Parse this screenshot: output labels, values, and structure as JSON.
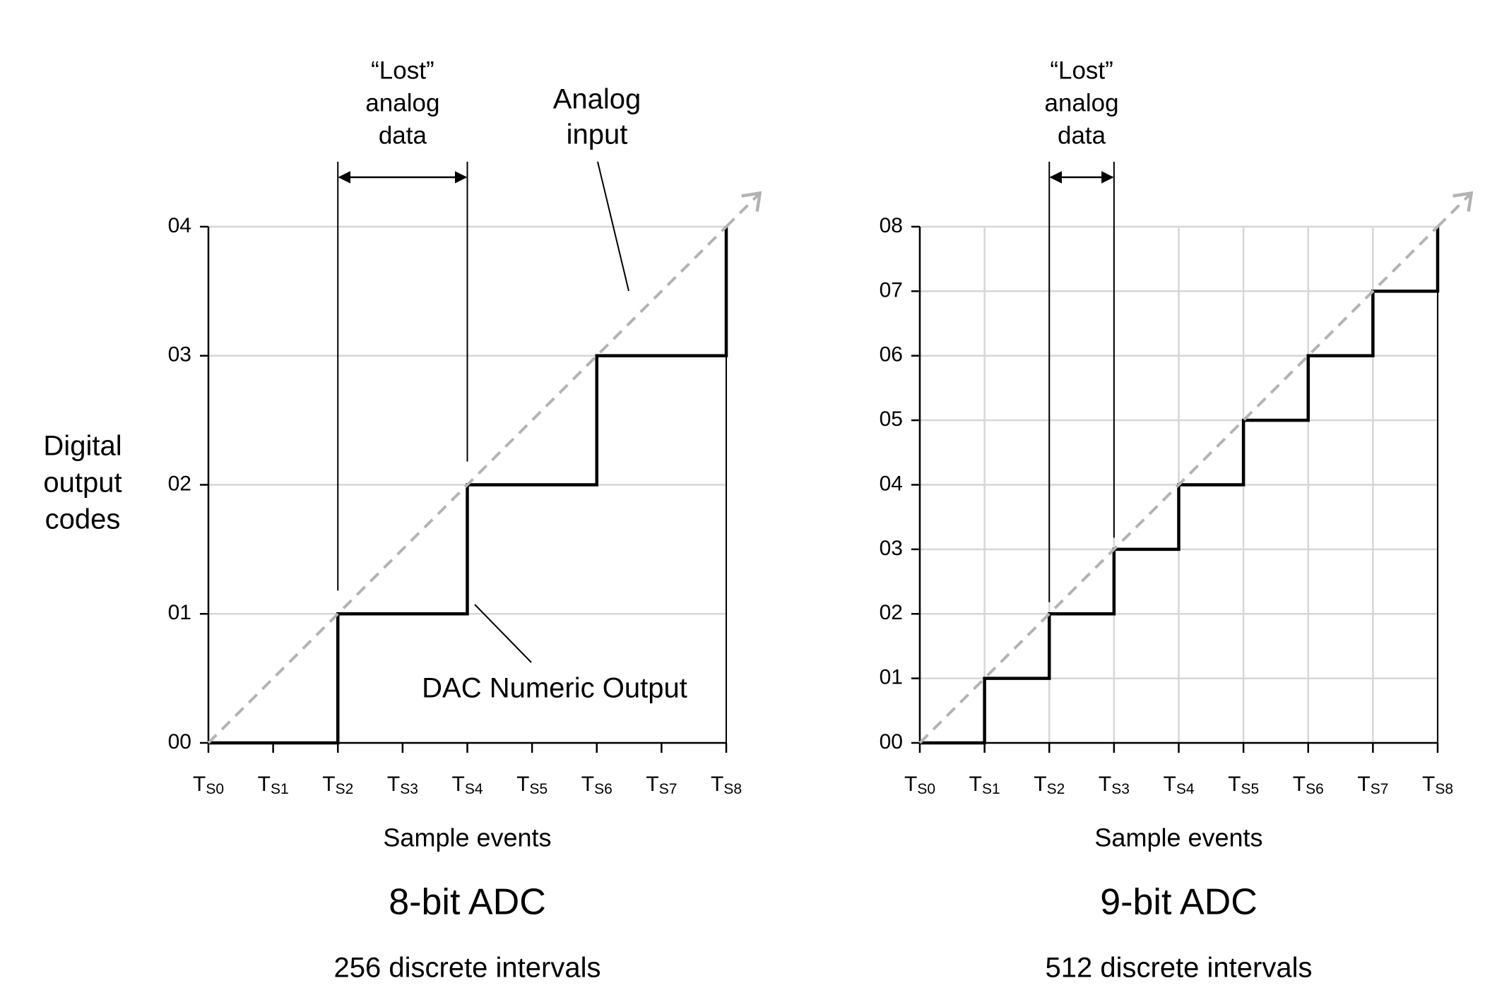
{
  "chart_data": [
    {
      "type": "line",
      "title": "8-bit ADC",
      "subtitle": "256 discrete intervals",
      "xlabel": "Sample events",
      "ylabel": [
        "Digital",
        "output",
        "codes"
      ],
      "x": [
        0,
        1,
        2,
        3,
        4,
        5,
        6,
        7,
        8
      ],
      "xlim": [
        0,
        8
      ],
      "xticks": [
        {
          "value": 0,
          "label": "T",
          "subscript": "S0"
        },
        {
          "value": 1,
          "label": "T",
          "subscript": "S1"
        },
        {
          "value": 2,
          "label": "T",
          "subscript": "S2"
        },
        {
          "value": 3,
          "label": "T",
          "subscript": "S3"
        },
        {
          "value": 4,
          "label": "T",
          "subscript": "S4"
        },
        {
          "value": 5,
          "label": "T",
          "subscript": "S5"
        },
        {
          "value": 6,
          "label": "T",
          "subscript": "S6"
        },
        {
          "value": 7,
          "label": "T",
          "subscript": "S7"
        },
        {
          "value": 8,
          "label": "T",
          "subscript": "S8"
        }
      ],
      "ylim": [
        0,
        4
      ],
      "yticks": [
        {
          "value": 0,
          "label": "00"
        },
        {
          "value": 1,
          "label": "01"
        },
        {
          "value": 2,
          "label": "02"
        },
        {
          "value": 3,
          "label": "03"
        },
        {
          "value": 4,
          "label": "04"
        }
      ],
      "grid": "y",
      "series": [
        {
          "style": "step",
          "color": "#000000",
          "values": [
            0,
            0,
            1,
            1,
            2,
            2,
            3,
            3,
            4
          ]
        },
        {
          "style": "dashed-arrow",
          "color": "#b3b3b3",
          "x": [
            0,
            8
          ],
          "values": [
            0,
            4
          ]
        }
      ],
      "lost_data": {
        "label": [
          "“Lost”",
          "analog",
          "data"
        ],
        "x": [
          2,
          4
        ]
      },
      "annotations": [
        {
          "text": [
            "Analog",
            "input"
          ]
        },
        {
          "text": [
            "DAC Numeric Output"
          ]
        }
      ]
    },
    {
      "type": "line",
      "title": "9-bit ADC",
      "subtitle": "512 discrete intervals",
      "xlabel": "Sample events",
      "x": [
        0,
        1,
        2,
        3,
        4,
        5,
        6,
        7,
        8
      ],
      "xlim": [
        0,
        8
      ],
      "xticks": [
        {
          "value": 0,
          "label": "T",
          "subscript": "S0"
        },
        {
          "value": 1,
          "label": "T",
          "subscript": "S1"
        },
        {
          "value": 2,
          "label": "T",
          "subscript": "S2"
        },
        {
          "value": 3,
          "label": "T",
          "subscript": "S3"
        },
        {
          "value": 4,
          "label": "T",
          "subscript": "S4"
        },
        {
          "value": 5,
          "label": "T",
          "subscript": "S5"
        },
        {
          "value": 6,
          "label": "T",
          "subscript": "S6"
        },
        {
          "value": 7,
          "label": "T",
          "subscript": "S7"
        },
        {
          "value": 8,
          "label": "T",
          "subscript": "S8"
        }
      ],
      "ylim": [
        0,
        8
      ],
      "yticks": [
        {
          "value": 0,
          "label": "00"
        },
        {
          "value": 1,
          "label": "01"
        },
        {
          "value": 2,
          "label": "02"
        },
        {
          "value": 3,
          "label": "03"
        },
        {
          "value": 4,
          "label": "04"
        },
        {
          "value": 5,
          "label": "05"
        },
        {
          "value": 6,
          "label": "06"
        },
        {
          "value": 7,
          "label": "07"
        },
        {
          "value": 8,
          "label": "08"
        }
      ],
      "grid": "both",
      "series": [
        {
          "style": "step",
          "color": "#000000",
          "values": [
            0,
            1,
            2,
            3,
            4,
            5,
            6,
            7,
            8
          ]
        },
        {
          "style": "dashed-arrow",
          "color": "#b3b3b3",
          "x": [
            0,
            8
          ],
          "values": [
            0,
            8
          ]
        }
      ],
      "lost_data": {
        "label": [
          "“Lost”",
          "analog",
          "data"
        ],
        "x": [
          2,
          3
        ]
      }
    }
  ]
}
